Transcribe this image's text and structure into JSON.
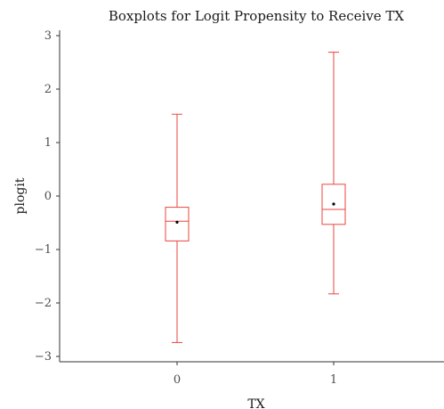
{
  "chart_data": {
    "type": "box",
    "title": "Boxplots for Logit Propensity to Receive TX",
    "xlabel": "TX",
    "ylabel": "plogit",
    "categories": [
      "0",
      "1"
    ],
    "ylim": [
      -3.1,
      3.1
    ],
    "yticks": [
      -3,
      -2,
      -1,
      0,
      1,
      2,
      3
    ],
    "ytick_labels": [
      "−3",
      "−2",
      "−1",
      "0",
      "1",
      "2",
      "3"
    ],
    "boxes": [
      {
        "category": "0",
        "min": -2.74,
        "q1": -0.84,
        "median": -0.47,
        "q3": -0.21,
        "max": 1.53,
        "mean": -0.49
      },
      {
        "category": "1",
        "min": -1.83,
        "q1": -0.53,
        "median": -0.25,
        "q3": 0.22,
        "max": 2.69,
        "mean": -0.15
      }
    ],
    "color": "#e8463f",
    "grid": false,
    "legend": "none"
  }
}
